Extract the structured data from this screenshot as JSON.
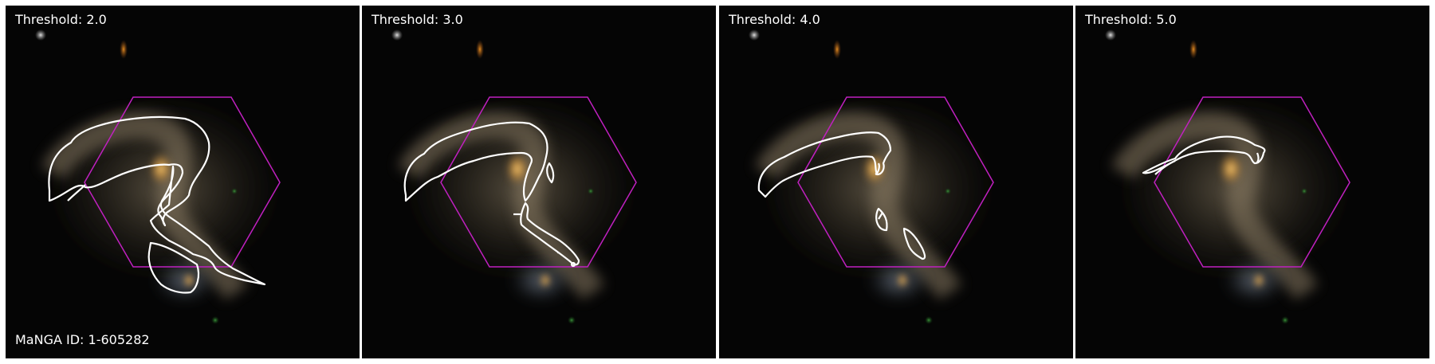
{
  "panels": [
    {
      "threshold_label": "Threshold: 2.0",
      "footer_label": "MaNGA ID: 1-605282",
      "threshold": 2.0
    },
    {
      "threshold_label": "Threshold: 3.0",
      "footer_label": "",
      "threshold": 3.0
    },
    {
      "threshold_label": "Threshold: 4.0",
      "footer_label": "",
      "threshold": 4.0
    },
    {
      "threshold_label": "Threshold: 5.0",
      "footer_label": "",
      "threshold": 5.0
    }
  ],
  "colors": {
    "background": "#050505",
    "contour": "#ffffff",
    "hexagon": "#c020c0",
    "galaxy_core": "#e8a030",
    "galaxy_arm": "#b8a888",
    "text": "#ffffff"
  }
}
